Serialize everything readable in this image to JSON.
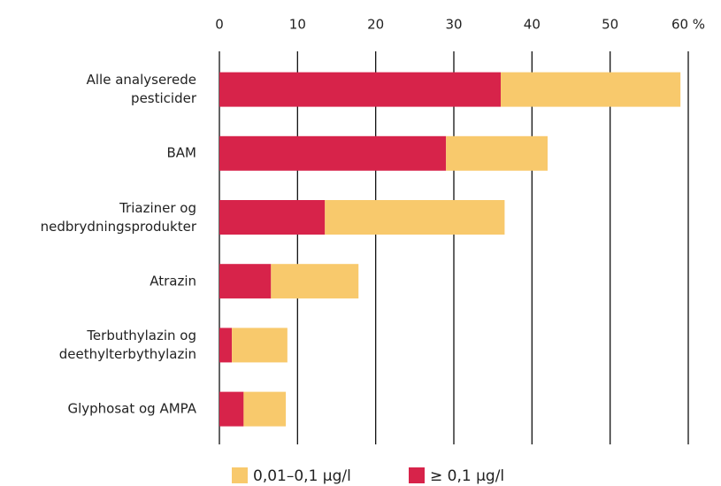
{
  "chart_data": {
    "type": "bar",
    "orientation": "horizontal",
    "stacked": true,
    "categories": [
      "Alle analyserede\npesticider",
      "BAM",
      "Triaziner og\nnedbrydningsprodukter",
      "Atrazin",
      "Terbuthylazin og\ndeethylterbythylazin",
      "Glyphosat og AMPA"
    ],
    "series": [
      {
        "name": "≥ 0,1 µg/l",
        "color": "#d7234a",
        "values": [
          36,
          29,
          13.5,
          6.6,
          1.6,
          3.1
        ]
      },
      {
        "name": "0,01–0,1 µg/l",
        "color": "#f8c96c",
        "values": [
          23,
          13,
          23,
          11.2,
          7.1,
          5.4
        ]
      }
    ],
    "xlim": [
      0,
      60
    ],
    "xticks": [
      0,
      10,
      20,
      30,
      40,
      50,
      {
        "value": 60,
        "label": "60 %"
      }
    ],
    "grid": true,
    "legend": "bottom"
  }
}
